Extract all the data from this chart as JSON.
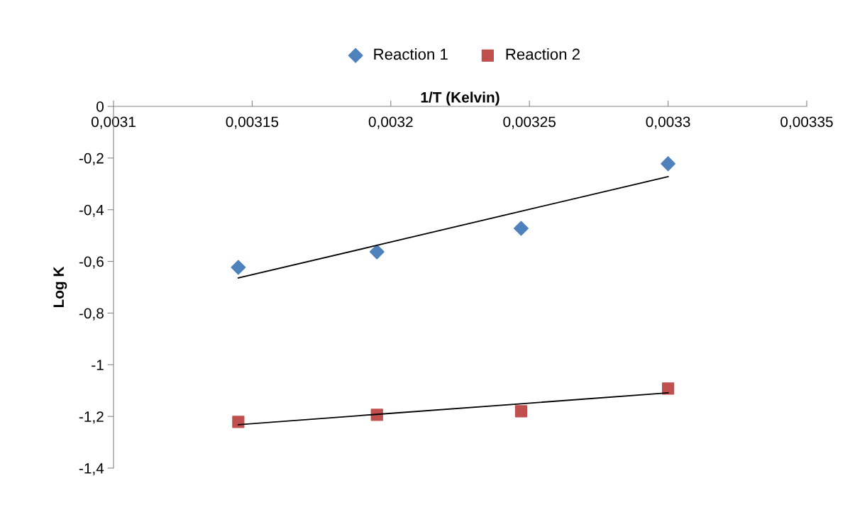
{
  "chart_data": {
    "type": "scatter",
    "xlabel": "1/T (Kelvin)",
    "ylabel": "Log K",
    "xlim": [
      0.0031,
      0.00335
    ],
    "ylim": [
      -1.4,
      0
    ],
    "xticks": [
      {
        "value": 0.0031,
        "label": "0,0031"
      },
      {
        "value": 0.00315,
        "label": "0,00315"
      },
      {
        "value": 0.0032,
        "label": "0,0032"
      },
      {
        "value": 0.00325,
        "label": "0,00325"
      },
      {
        "value": 0.0033,
        "label": "0,0033"
      },
      {
        "value": 0.00335,
        "label": "0,00335"
      }
    ],
    "yticks": [
      0,
      {
        "value": -0.2,
        "label": "-0,2"
      },
      {
        "value": -0.4,
        "label": "-0,4"
      },
      {
        "value": -0.6,
        "label": "-0,6"
      },
      {
        "value": -0.8,
        "label": "-0,8"
      },
      -1,
      {
        "value": -1.2,
        "label": "-1,2"
      },
      {
        "value": -1.4,
        "label": "-1,4"
      }
    ],
    "x": [
      0.003145,
      0.003195,
      0.003247,
      0.0033
    ],
    "series": [
      {
        "name": "Reaction 1",
        "color": "#4f81bd",
        "marker": "diamond",
        "values": [
          -0.623,
          -0.563,
          -0.472,
          -0.222
        ]
      },
      {
        "name": "Reaction 2",
        "color": "#c0504d",
        "marker": "square",
        "values": [
          -1.221,
          -1.194,
          -1.18,
          -1.092
        ]
      },
      {
        "type": "line",
        "color": "#000000",
        "values": [
          -0.664,
          -0.538,
          -0.406,
          -0.272
        ]
      },
      {
        "type": "line",
        "color": "#000000",
        "values": [
          -1.232,
          -1.192,
          -1.151,
          -1.109
        ]
      }
    ],
    "legend": "top",
    "grid": false
  }
}
